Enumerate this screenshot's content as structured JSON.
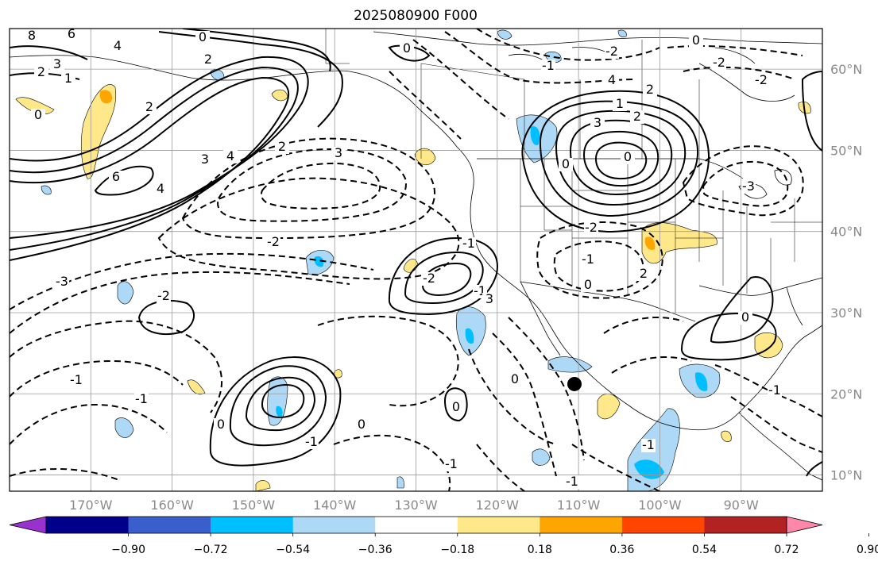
{
  "title": "2025080900 F000",
  "map": {
    "lon_range": [
      -180,
      -80
    ],
    "lat_range": [
      8,
      65
    ],
    "lat_ticks": [
      "60°N",
      "50°N",
      "40°N",
      "30°N",
      "20°N",
      "10°N"
    ],
    "lon_ticks": [
      "170°W",
      "160°W",
      "150°W",
      "140°W",
      "130°W",
      "120°W",
      "110°W",
      "100°W",
      "90°W"
    ],
    "marker": {
      "lon": -110.5,
      "lat": 21.2,
      "color": "#000000"
    },
    "contour_labels": [
      "8",
      "6",
      "0",
      "2",
      "3",
      "2",
      "1",
      "0",
      "4",
      "2",
      "6",
      "4",
      "3",
      "2",
      "3",
      "4",
      "0",
      "-2",
      "-3",
      "-2",
      "-1",
      "-1",
      "4",
      "1",
      "2",
      "3",
      "0",
      "-3",
      "0",
      "-2",
      "-2",
      "-2",
      "-1",
      "2",
      "0",
      "-2",
      "-1",
      "0",
      "2",
      "-1",
      "-2",
      "-1",
      "3",
      "0",
      "0",
      "-1",
      "-1",
      "0",
      "0",
      "-1",
      "-1",
      "0",
      "-1"
    ]
  },
  "colorbar": {
    "colors": [
      "#9932cc",
      "#00008b",
      "#3a5fcd",
      "#00bfff",
      "#add8f6",
      "#ffffff",
      "#ffe88a",
      "#ffa500",
      "#ff4500",
      "#b22222",
      "#ff88aa"
    ],
    "labels": [
      "−0.90",
      "−0.72",
      "−0.54",
      "−0.36",
      "−0.18",
      "0.18",
      "0.36",
      "0.54",
      "0.72",
      "0.90"
    ]
  },
  "chart_data": {
    "type": "heatmap",
    "title": "2025080900 F000",
    "x_ticks": [
      "170°W",
      "160°W",
      "150°W",
      "140°W",
      "130°W",
      "120°W",
      "110°W",
      "100°W",
      "90°W"
    ],
    "y_ticks": [
      "60°N",
      "50°N",
      "40°N",
      "30°N",
      "20°N",
      "10°N"
    ],
    "colorbar_levels": [
      -0.9,
      -0.72,
      -0.54,
      -0.36,
      -0.18,
      0.18,
      0.36,
      0.54,
      0.72,
      0.9
    ]
  }
}
